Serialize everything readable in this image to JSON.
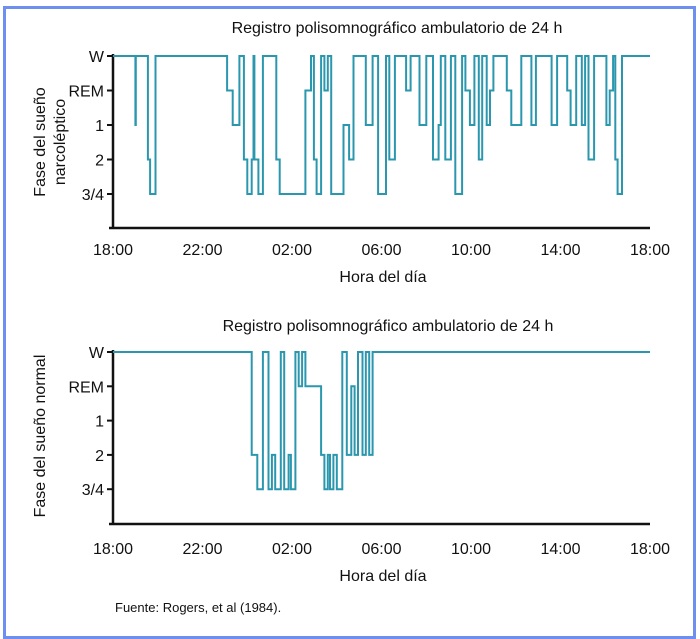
{
  "colors": {
    "frame": "#6f8ff0",
    "trace": "#2a97ae",
    "axis": "#111111"
  },
  "footer": {
    "source": "Fuente: Rogers, et al (1984)."
  },
  "chart_data": [
    {
      "type": "line",
      "step": true,
      "title": "Registro polisomnográfico ambulatorio de 24 h",
      "xlabel": "Hora del día",
      "ylabel": "Fase del sueño narcoléptico",
      "ylabel_lines": [
        "Fase del sueño",
        "narcoléptico"
      ],
      "x_tick_labels": [
        "18:00",
        "22:00",
        "02:00",
        "06:00",
        "10:00",
        "14:00",
        "18:00"
      ],
      "y_tick_labels": [
        "W",
        "REM",
        "1",
        "2",
        "3/4"
      ],
      "xlim_hours": [
        0,
        24
      ],
      "x_unit": "hours since 18:00",
      "y_levels": {
        "W": 0,
        "REM": 1,
        "1": 2,
        "2": 3,
        "3/4": 4
      },
      "series": [
        {
          "name": "narcoléptico",
          "points": [
            [
              0,
              "W"
            ],
            [
              1.0,
              "1"
            ],
            [
              1.02,
              "W"
            ],
            [
              1.56,
              "2"
            ],
            [
              1.66,
              "3/4"
            ],
            [
              1.9,
              "W"
            ],
            [
              5.1,
              "REM"
            ],
            [
              5.35,
              "1"
            ],
            [
              5.65,
              "W"
            ],
            [
              5.85,
              "2"
            ],
            [
              6.0,
              "3/4"
            ],
            [
              6.2,
              "2"
            ],
            [
              6.28,
              "W"
            ],
            [
              6.32,
              "2"
            ],
            [
              6.5,
              "3/4"
            ],
            [
              6.7,
              "W"
            ],
            [
              7.3,
              "2"
            ],
            [
              7.45,
              "3/4"
            ],
            [
              8.6,
              "REM"
            ],
            [
              8.85,
              "W"
            ],
            [
              8.98,
              "2"
            ],
            [
              9.1,
              "3/4"
            ],
            [
              9.3,
              "W"
            ],
            [
              9.45,
              "REM"
            ],
            [
              9.6,
              "W"
            ],
            [
              9.75,
              "3/4"
            ],
            [
              10.3,
              "1"
            ],
            [
              10.55,
              "2"
            ],
            [
              10.75,
              "W"
            ],
            [
              11.3,
              "1"
            ],
            [
              11.6,
              "W"
            ],
            [
              11.85,
              "3/4"
            ],
            [
              12.2,
              "W"
            ],
            [
              12.35,
              "2"
            ],
            [
              12.6,
              "W"
            ],
            [
              13.1,
              "REM"
            ],
            [
              13.3,
              "W"
            ],
            [
              13.7,
              "1"
            ],
            [
              14.0,
              "W"
            ],
            [
              14.3,
              "2"
            ],
            [
              14.55,
              "1"
            ],
            [
              14.65,
              "W"
            ],
            [
              14.85,
              "2"
            ],
            [
              15.1,
              "W"
            ],
            [
              15.3,
              "3/4"
            ],
            [
              15.6,
              "W"
            ],
            [
              15.75,
              "REM"
            ],
            [
              15.95,
              "1"
            ],
            [
              16.15,
              "W"
            ],
            [
              16.35,
              "2"
            ],
            [
              16.5,
              "W"
            ],
            [
              16.7,
              "1"
            ],
            [
              16.85,
              "REM"
            ],
            [
              17.0,
              "W"
            ],
            [
              17.6,
              "REM"
            ],
            [
              17.8,
              "1"
            ],
            [
              18.25,
              "W"
            ],
            [
              18.7,
              "1"
            ],
            [
              18.9,
              "W"
            ],
            [
              19.6,
              "1"
            ],
            [
              19.85,
              "W"
            ],
            [
              20.3,
              "REM"
            ],
            [
              20.45,
              "1"
            ],
            [
              20.7,
              "W"
            ],
            [
              20.95,
              "1"
            ],
            [
              21.1,
              "W"
            ],
            [
              21.25,
              "2"
            ],
            [
              21.5,
              "W"
            ],
            [
              22.05,
              "1"
            ],
            [
              22.2,
              "REM"
            ],
            [
              22.35,
              "W"
            ],
            [
              22.45,
              "2"
            ],
            [
              22.55,
              "3/4"
            ],
            [
              22.75,
              "W"
            ],
            [
              24,
              "W"
            ]
          ]
        }
      ]
    },
    {
      "type": "line",
      "step": true,
      "title": "Registro polisomnográfico ambulatorio de 24 h",
      "xlabel": "Hora del día",
      "ylabel": "Fase del sueño normal",
      "ylabel_lines": [
        "Fase del sueño normal"
      ],
      "x_tick_labels": [
        "18:00",
        "22:00",
        "02:00",
        "06:00",
        "10:00",
        "14:00",
        "18:00"
      ],
      "y_tick_labels": [
        "W",
        "REM",
        "1",
        "2",
        "3/4"
      ],
      "xlim_hours": [
        0,
        24
      ],
      "x_unit": "hours since 18:00",
      "y_levels": {
        "W": 0,
        "REM": 1,
        "1": 2,
        "2": 3,
        "3/4": 4
      },
      "series": [
        {
          "name": "normal",
          "points": [
            [
              0,
              "W"
            ],
            [
              6.2,
              "2"
            ],
            [
              6.45,
              "3/4"
            ],
            [
              6.7,
              "W"
            ],
            [
              6.95,
              "3/4"
            ],
            [
              7.1,
              "2"
            ],
            [
              7.25,
              "3/4"
            ],
            [
              7.5,
              "W"
            ],
            [
              7.65,
              "3/4"
            ],
            [
              7.85,
              "2"
            ],
            [
              7.95,
              "3/4"
            ],
            [
              8.15,
              "W"
            ],
            [
              8.3,
              "REM"
            ],
            [
              8.45,
              "W"
            ],
            [
              8.6,
              "REM"
            ],
            [
              9.3,
              "2"
            ],
            [
              9.45,
              "3/4"
            ],
            [
              9.6,
              "2"
            ],
            [
              9.7,
              "3/4"
            ],
            [
              9.85,
              "2"
            ],
            [
              10.0,
              "3/4"
            ],
            [
              10.25,
              "W"
            ],
            [
              10.45,
              "2"
            ],
            [
              10.65,
              "REM"
            ],
            [
              10.8,
              "2"
            ],
            [
              10.95,
              "W"
            ],
            [
              11.15,
              "2"
            ],
            [
              11.3,
              "W"
            ],
            [
              11.45,
              "2"
            ],
            [
              11.6,
              "W"
            ],
            [
              24,
              "W"
            ]
          ]
        }
      ]
    }
  ]
}
